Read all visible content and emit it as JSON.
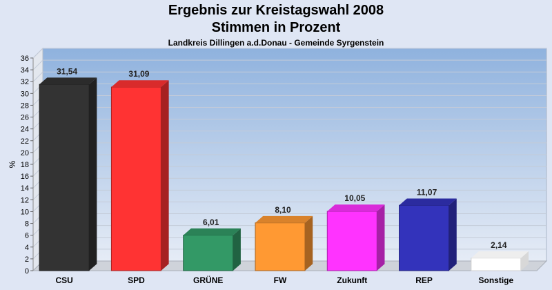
{
  "title": "Ergebnis zur Kreistagswahl 2008",
  "title_line2": "Stimmen in Prozent",
  "subtitle": "Landkreis Dillingen a.d.Donau - Gemeinde Syrgenstein",
  "chart_data": {
    "type": "bar",
    "title": "Ergebnis zur Kreistagswahl 2008 Stimmen in Prozent",
    "subtitle": "Landkreis Dillingen a.d.Donau - Gemeinde Syrgenstein",
    "xlabel": "",
    "ylabel": "%",
    "ylim": [
      0,
      36
    ],
    "yticks": [
      0,
      2,
      4,
      6,
      8,
      10,
      12,
      14,
      16,
      18,
      20,
      22,
      24,
      26,
      28,
      30,
      32,
      34,
      36
    ],
    "grid": true,
    "legend": "none",
    "categories": [
      "CSU",
      "SPD",
      "GRÜNE",
      "FW",
      "Zukunft",
      "REP",
      "Sonstige"
    ],
    "values": [
      31.54,
      31.09,
      6.01,
      8.1,
      10.05,
      11.07,
      2.14
    ],
    "value_labels": [
      "31,54",
      "31,09",
      "6,01",
      "8,10",
      "10,05",
      "11,07",
      "2,14"
    ],
    "colors": [
      "#333333",
      "#ff3333",
      "#339966",
      "#ff9933",
      "#ff33ff",
      "#3333bb",
      "#ffffff"
    ]
  }
}
